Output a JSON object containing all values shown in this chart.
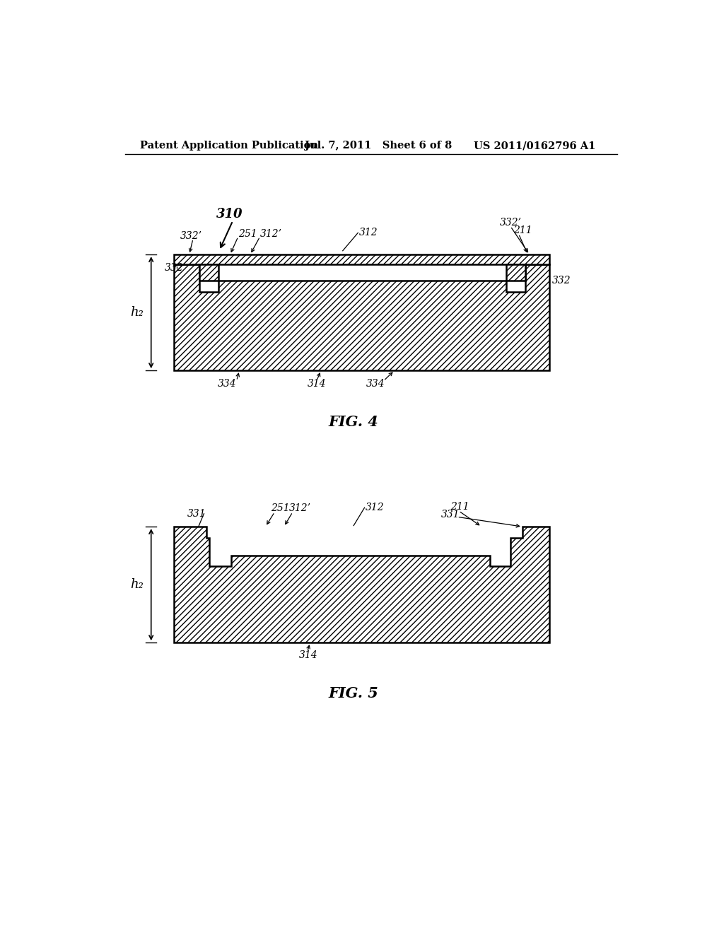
{
  "header_left": "Patent Application Publication",
  "header_mid": "Jul. 7, 2011   Sheet 6 of 8",
  "header_right": "US 2011/0162796 A1",
  "fig4_label": "FIG. 4",
  "fig5_label": "FIG. 5",
  "fig4_ref": "310",
  "fig4_labels": {
    "332_prime_left": "332’",
    "251": "251",
    "312_prime": "312’",
    "312": "312",
    "332_prime_right": "332’",
    "211": "211",
    "332_left": "332",
    "332_right": "332",
    "h2": "h₂",
    "334_left": "334",
    "314": "314",
    "334_right": "334"
  },
  "fig5_labels": {
    "331_left": "331",
    "251": "251",
    "312_prime": "312’",
    "312": "312",
    "211": "211",
    "331_right": "331",
    "h2": "h₂",
    "314": "314"
  },
  "background": "#ffffff"
}
